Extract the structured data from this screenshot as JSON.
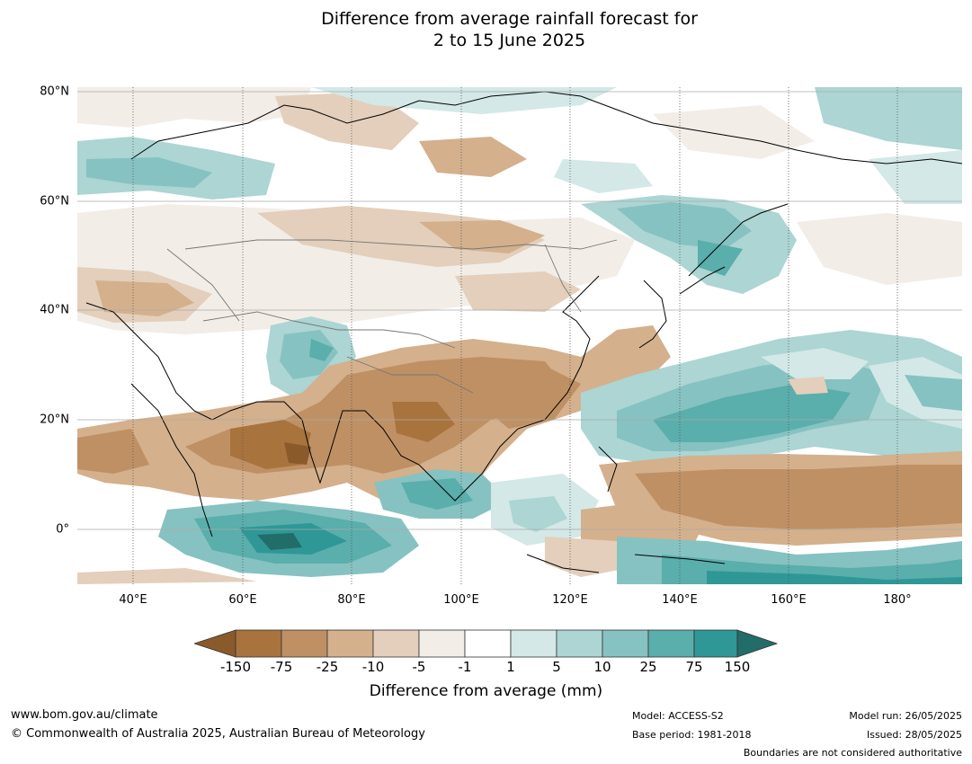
{
  "title": {
    "line1": "Difference from average rainfall forecast for",
    "line2": "2 to 15 June 2025"
  },
  "map": {
    "lat_labels": [
      "80°N",
      "60°N",
      "40°N",
      "20°N",
      "0°"
    ],
    "lon_labels": [
      "40°E",
      "60°E",
      "80°E",
      "100°E",
      "120°E",
      "140°E",
      "160°E",
      "180°"
    ],
    "region": "Asia and West Pacific",
    "extent": {
      "lon_min": 30,
      "lon_max": 190,
      "lat_min": -10,
      "lat_max": 81
    }
  },
  "colorbar": {
    "title": "Difference from average (mm)",
    "ticks": [
      "-150",
      "-75",
      "-25",
      "-10",
      "-5",
      "-1",
      "1",
      "5",
      "10",
      "25",
      "75",
      "150"
    ],
    "colors": [
      "#8a5a2b",
      "#a9733e",
      "#bf9064",
      "#d4b08d",
      "#e3cfbb",
      "#f3ede8",
      "#ffffff",
      "#d3e8e7",
      "#acd5d4",
      "#86c2c1",
      "#5aaeac",
      "#2f9896",
      "#226c6a"
    ]
  },
  "footer": {
    "website": "www.bom.gov.au/climate",
    "copyright": "© Commonwealth of Australia 2025, Australian Bureau of Meteorology",
    "model": "Model: ACCESS-S2",
    "base_period": "Base period: 1981-2018",
    "model_run": "Model run: 26/05/2025",
    "issued": "Issued: 28/05/2025",
    "disclaimer": "Boundaries are not considered authoritative"
  }
}
